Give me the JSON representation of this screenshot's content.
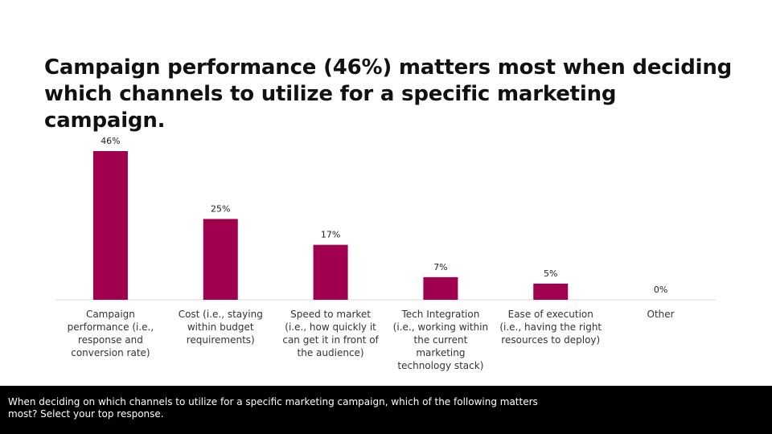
{
  "title": "Campaign performance (46%) matters most when deciding\nwhich channels to utilize for a specific marketing\ncampaign.",
  "footer_text": "When deciding on which channels to utilize for a specific marketing campaign, which of the following matters most? Select your top response.",
  "colors": {
    "bar": "#A0004D",
    "axis": "#D9D9D9",
    "footer_bg": "#000000"
  },
  "chart_data": {
    "type": "bar",
    "categories": [
      [
        "Campaign",
        "performance (i.e.,",
        "response and",
        "conversion rate)"
      ],
      [
        "Cost (i.e., staying",
        "within budget",
        "requirements)"
      ],
      [
        "Speed to market",
        "(i.e., how quickly it",
        "can get it in front of",
        "the audience)"
      ],
      [
        "Tech Integration",
        "(i.e., working within",
        "the current",
        "marketing",
        "technology stack)"
      ],
      [
        "Ease of execution",
        "(i.e., having the right",
        "resources to deploy)"
      ],
      [
        "Other"
      ]
    ],
    "values": [
      46,
      25,
      17,
      7,
      5,
      0
    ],
    "data_labels": [
      "46%",
      "25%",
      "17%",
      "7%",
      "5%",
      "0%"
    ],
    "ylim": [
      0,
      46
    ],
    "grid": false,
    "legend": "none"
  }
}
